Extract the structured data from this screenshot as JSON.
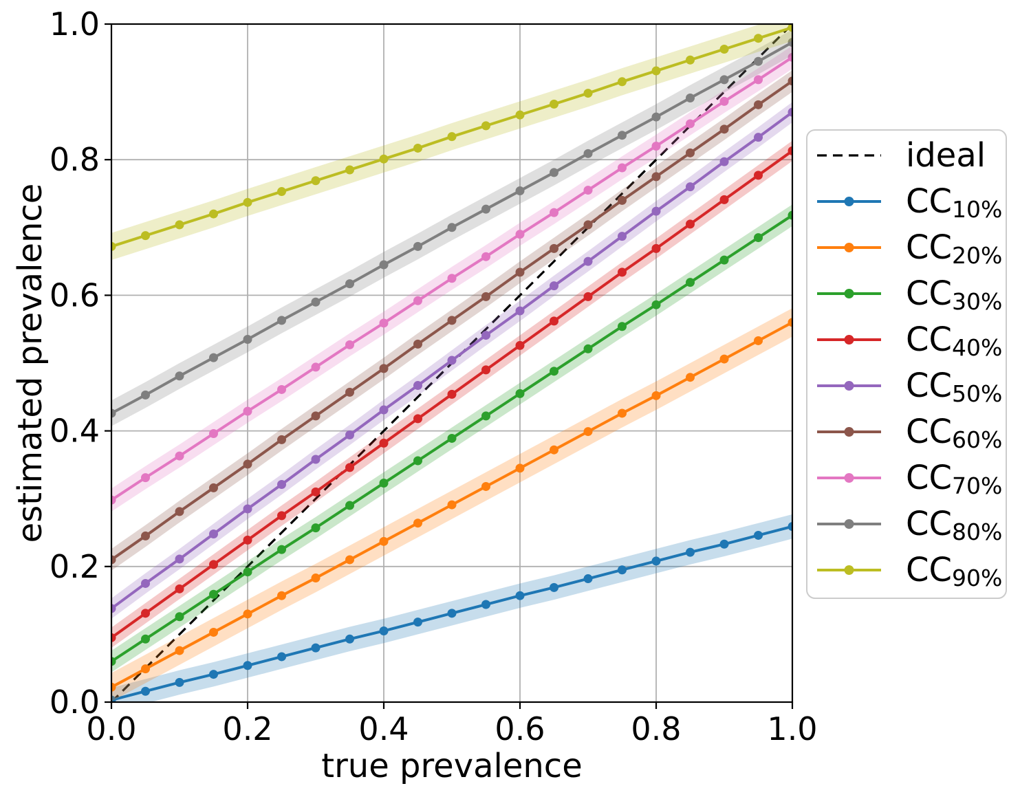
{
  "figure": {
    "background": "#ffffff"
  },
  "chart_data": {
    "type": "line",
    "title": "",
    "xlabel": "true prevalence",
    "ylabel": "estimated prevalence",
    "xlim": [
      0.0,
      1.0
    ],
    "ylim": [
      0.0,
      1.0
    ],
    "xticks": [
      0.0,
      0.2,
      0.4,
      0.6,
      0.8,
      1.0
    ],
    "yticks": [
      0.0,
      0.2,
      0.4,
      0.6,
      0.8,
      1.0
    ],
    "xtick_labels": [
      "0.0",
      "0.2",
      "0.4",
      "0.6",
      "0.8",
      "1.0"
    ],
    "ytick_labels": [
      "0.0",
      "0.2",
      "0.4",
      "0.6",
      "0.8",
      "1.0"
    ],
    "grid": true,
    "grid_color": "#b0b0b0",
    "band_alpha": 0.25,
    "legend_position": "right-outside",
    "x": [
      0,
      0.05,
      0.1,
      0.15,
      0.2,
      0.25,
      0.3,
      0.35,
      0.4,
      0.45,
      0.5,
      0.55,
      0.6,
      0.65,
      0.7,
      0.75,
      0.8,
      0.85,
      0.9,
      0.95,
      1
    ],
    "reference_line": {
      "label": "ideal",
      "style": "dashed",
      "color": "#000000",
      "x": [
        0,
        1
      ],
      "y": [
        0,
        1
      ]
    },
    "series": [
      {
        "name": "CC",
        "sub": "10%",
        "key": "cc-10",
        "color": "#1f77b4",
        "band_halfwidth": 0.018,
        "values": [
          0.003,
          0.016,
          0.029,
          0.041,
          0.054,
          0.067,
          0.08,
          0.093,
          0.105,
          0.118,
          0.131,
          0.144,
          0.157,
          0.169,
          0.182,
          0.195,
          0.208,
          0.221,
          0.233,
          0.246,
          0.259
        ]
      },
      {
        "name": "CC",
        "sub": "20%",
        "key": "cc-20",
        "color": "#ff7f0e",
        "band_halfwidth": 0.021,
        "values": [
          0.022,
          0.049,
          0.076,
          0.103,
          0.13,
          0.157,
          0.183,
          0.21,
          0.237,
          0.264,
          0.291,
          0.318,
          0.345,
          0.372,
          0.399,
          0.426,
          0.452,
          0.479,
          0.506,
          0.533,
          0.56
        ]
      },
      {
        "name": "CC",
        "sub": "30%",
        "key": "cc-30",
        "color": "#2ca02c",
        "band_halfwidth": 0.016,
        "values": [
          0.06,
          0.093,
          0.126,
          0.159,
          0.192,
          0.225,
          0.257,
          0.29,
          0.323,
          0.356,
          0.389,
          0.422,
          0.455,
          0.488,
          0.521,
          0.554,
          0.586,
          0.619,
          0.652,
          0.685,
          0.718
        ]
      },
      {
        "name": "CC",
        "sub": "40%",
        "key": "cc-40",
        "color": "#d62728",
        "band_halfwidth": 0.015,
        "values": [
          0.095,
          0.131,
          0.167,
          0.203,
          0.239,
          0.275,
          0.31,
          0.346,
          0.382,
          0.418,
          0.454,
          0.49,
          0.526,
          0.562,
          0.598,
          0.634,
          0.669,
          0.705,
          0.741,
          0.777,
          0.813
        ]
      },
      {
        "name": "CC",
        "sub": "50%",
        "key": "cc-50",
        "color": "#9467bd",
        "band_halfwidth": 0.015,
        "values": [
          0.138,
          0.175,
          0.211,
          0.248,
          0.285,
          0.321,
          0.358,
          0.394,
          0.431,
          0.467,
          0.504,
          0.541,
          0.577,
          0.614,
          0.65,
          0.687,
          0.724,
          0.76,
          0.797,
          0.833,
          0.87
        ]
      },
      {
        "name": "CC",
        "sub": "60%",
        "key": "cc-60",
        "color": "#8c564b",
        "band_halfwidth": 0.016,
        "values": [
          0.21,
          0.245,
          0.281,
          0.316,
          0.351,
          0.387,
          0.422,
          0.457,
          0.492,
          0.528,
          0.563,
          0.598,
          0.634,
          0.669,
          0.704,
          0.74,
          0.775,
          0.81,
          0.845,
          0.881,
          0.916
        ]
      },
      {
        "name": "CC",
        "sub": "70%",
        "key": "cc-70",
        "color": "#e377c2",
        "band_halfwidth": 0.017,
        "values": [
          0.298,
          0.331,
          0.363,
          0.396,
          0.429,
          0.461,
          0.494,
          0.527,
          0.559,
          0.592,
          0.625,
          0.657,
          0.69,
          0.722,
          0.755,
          0.788,
          0.82,
          0.853,
          0.886,
          0.918,
          0.951
        ]
      },
      {
        "name": "CC",
        "sub": "80%",
        "key": "cc-80",
        "color": "#7f7f7f",
        "band_halfwidth": 0.019,
        "values": [
          0.426,
          0.453,
          0.481,
          0.508,
          0.535,
          0.563,
          0.59,
          0.617,
          0.645,
          0.672,
          0.7,
          0.727,
          0.754,
          0.781,
          0.809,
          0.836,
          0.863,
          0.891,
          0.918,
          0.945,
          0.973
        ]
      },
      {
        "name": "CC",
        "sub": "90%",
        "key": "cc-90",
        "color": "#bcbd22",
        "band_halfwidth": 0.02,
        "values": [
          0.672,
          0.688,
          0.704,
          0.72,
          0.737,
          0.753,
          0.769,
          0.785,
          0.801,
          0.817,
          0.834,
          0.85,
          0.866,
          0.882,
          0.898,
          0.915,
          0.931,
          0.947,
          0.963,
          0.979,
          0.995
        ]
      }
    ]
  }
}
